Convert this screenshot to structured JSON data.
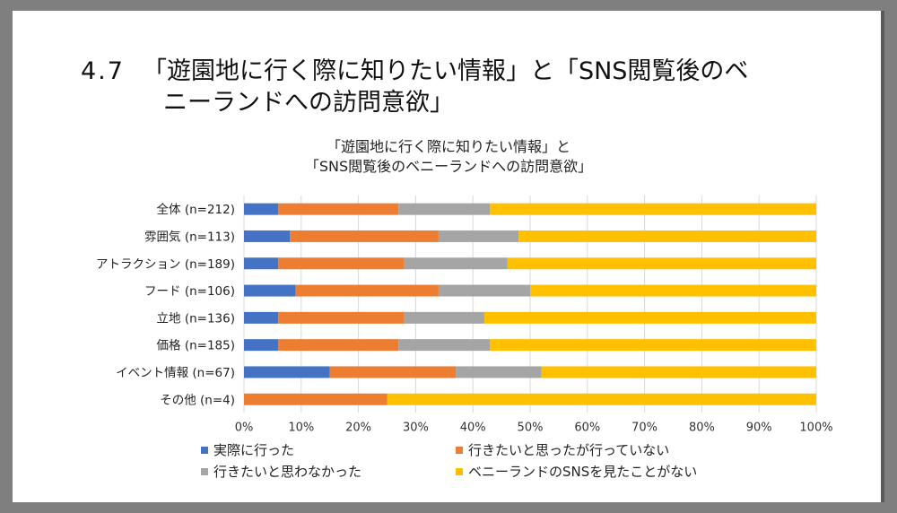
{
  "slide": {
    "section_number": "4.7",
    "title_line1": "「遊園地に行く際に知りたい情報」と「SNS閲覧後のベ",
    "title_line2": "ニーランドへの訪問意欲」"
  },
  "chart_data": {
    "type": "bar",
    "orientation": "horizontal",
    "stacked": "percent",
    "title_line1": "「遊園地に行く際に知りたい情報」と",
    "title_line2": "「SNS閲覧後のベニーランドへの訪問意欲」",
    "categories": [
      "全体 (n=212)",
      "雰囲気 (n=113)",
      "アトラクション (n=189)",
      "フード (n=106)",
      "立地 (n=136)",
      "価格 (n=185)",
      "イベント情報 (n=67)",
      "その他 (n=4)"
    ],
    "series": [
      {
        "name": "実際に行った",
        "color": "#4472C4",
        "values": [
          6,
          8,
          6,
          9,
          6,
          6,
          15,
          0
        ]
      },
      {
        "name": "行きたいと思ったが行っていない",
        "color": "#ED7D31",
        "values": [
          21,
          26,
          22,
          25,
          22,
          21,
          22,
          25
        ]
      },
      {
        "name": "行きたいと思わなかった",
        "color": "#A5A5A5",
        "values": [
          16,
          14,
          18,
          16,
          14,
          16,
          15,
          0
        ]
      },
      {
        "name": "ベニーランドのSNSを見たことがない",
        "color": "#FFC000",
        "values": [
          57,
          52,
          54,
          50,
          58,
          57,
          48,
          75
        ]
      }
    ],
    "xlim": [
      0,
      100
    ],
    "x_ticks": [
      "0%",
      "10%",
      "20%",
      "30%",
      "40%",
      "50%",
      "60%",
      "70%",
      "80%",
      "90%",
      "100%"
    ],
    "grid": true,
    "legend_position": "bottom"
  }
}
